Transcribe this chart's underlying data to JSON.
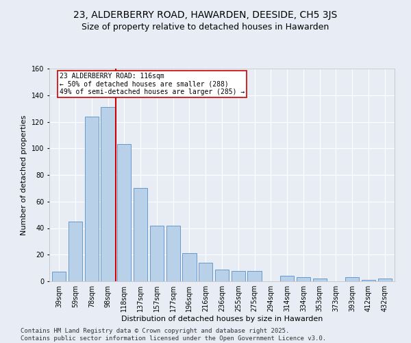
{
  "title": "23, ALDERBERRY ROAD, HAWARDEN, DEESIDE, CH5 3JS",
  "subtitle": "Size of property relative to detached houses in Hawarden",
  "xlabel": "Distribution of detached houses by size in Hawarden",
  "ylabel": "Number of detached properties",
  "categories": [
    "39sqm",
    "59sqm",
    "78sqm",
    "98sqm",
    "118sqm",
    "137sqm",
    "157sqm",
    "177sqm",
    "196sqm",
    "216sqm",
    "236sqm",
    "255sqm",
    "275sqm",
    "294sqm",
    "314sqm",
    "334sqm",
    "353sqm",
    "373sqm",
    "393sqm",
    "412sqm",
    "432sqm"
  ],
  "values": [
    7,
    45,
    124,
    131,
    103,
    70,
    42,
    42,
    21,
    14,
    9,
    8,
    8,
    0,
    4,
    3,
    2,
    0,
    3,
    1,
    2
  ],
  "bar_color": "#b8d0e8",
  "bar_edge_color": "#6699cc",
  "bar_width": 0.85,
  "annotation_line1": "23 ALDERBERRY ROAD: 116sqm",
  "annotation_line2": "← 50% of detached houses are smaller (288)",
  "annotation_line3": "49% of semi-detached houses are larger (285) →",
  "annotation_box_color": "#ffffff",
  "annotation_box_edge": "#cc0000",
  "red_line_color": "#cc0000",
  "ylim": [
    0,
    160
  ],
  "yticks": [
    0,
    20,
    40,
    60,
    80,
    100,
    120,
    140,
    160
  ],
  "background_color": "#e8ecf5",
  "plot_bg_color": "#e8ecf5",
  "footer_line1": "Contains HM Land Registry data © Crown copyright and database right 2025.",
  "footer_line2": "Contains public sector information licensed under the Open Government Licence v3.0.",
  "title_fontsize": 10,
  "subtitle_fontsize": 9,
  "label_fontsize": 8,
  "tick_fontsize": 7,
  "annotation_fontsize": 7,
  "footer_fontsize": 6.5
}
